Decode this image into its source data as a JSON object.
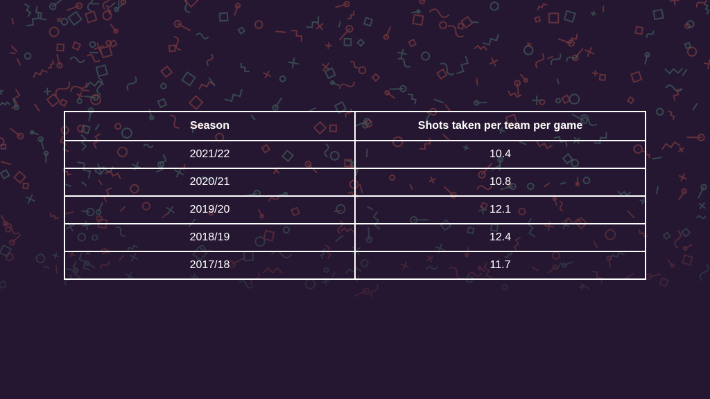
{
  "chart_data": {
    "type": "table",
    "columns": [
      "Season",
      "Shots taken per team per game"
    ],
    "rows": [
      [
        "2021/22",
        "10.4"
      ],
      [
        "2020/21",
        "10.8"
      ],
      [
        "2019/20",
        "12.1"
      ],
      [
        "2018/19",
        "12.4"
      ],
      [
        "2017/18",
        "11.7"
      ]
    ]
  },
  "colors": {
    "background": "#251732",
    "text": "#ffffff",
    "pattern_red": "#7a3a3e",
    "pattern_teal": "#3f5a5a"
  }
}
